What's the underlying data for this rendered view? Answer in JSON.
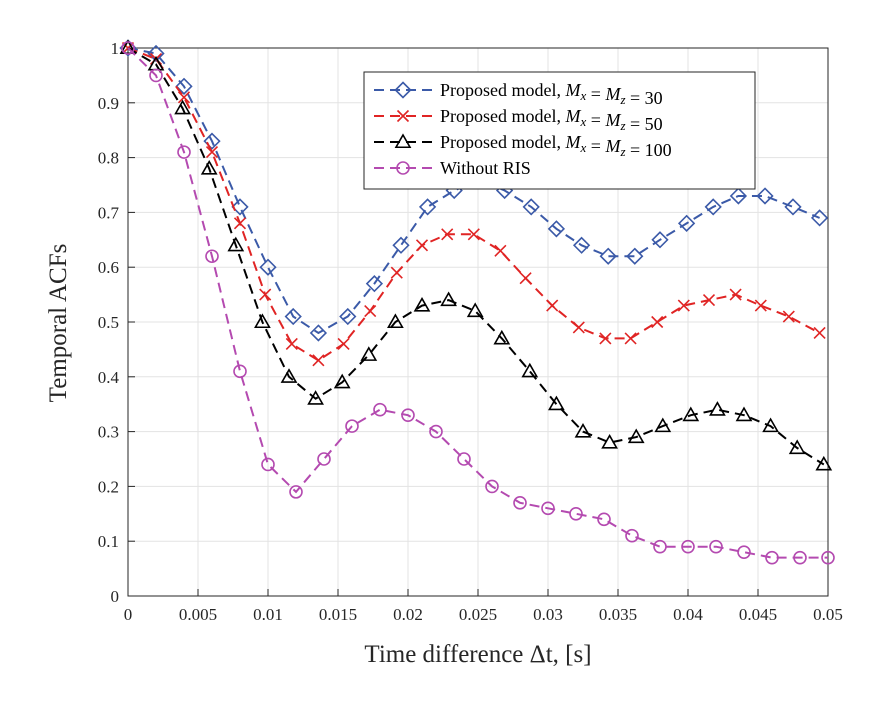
{
  "chart_data": {
    "type": "line",
    "title": "",
    "xlabel": "Time difference Δt, [s]",
    "ylabel": "Temporal ACFs",
    "xlim": [
      0,
      0.05
    ],
    "ylim": [
      0,
      1
    ],
    "xticks": [
      0,
      0.005,
      0.01,
      0.015,
      0.02,
      0.025,
      0.03,
      0.035,
      0.04,
      0.045,
      0.05
    ],
    "xtick_labels": [
      "0",
      "0.005",
      "0.01",
      "0.015",
      "0.02",
      "0.025",
      "0.03",
      "0.035",
      "0.04",
      "0.045",
      "0.05"
    ],
    "yticks": [
      0,
      0.1,
      0.2,
      0.3,
      0.4,
      0.5,
      0.6,
      0.7,
      0.8,
      0.9,
      1
    ],
    "ytick_labels": [
      "0",
      "0.1",
      "0.2",
      "0.3",
      "0.4",
      "0.5",
      "0.6",
      "0.7",
      "0.8",
      "0.9",
      "1"
    ],
    "grid": true,
    "legend_position": "top-right",
    "series": [
      {
        "name": "Proposed model, Mx = Mz = 30",
        "color": "#3b5aa8",
        "marker": "diamond",
        "x": [
          0,
          0.002,
          0.004,
          0.006,
          0.008,
          0.01,
          0.0118,
          0.0136,
          0.0157,
          0.0176,
          0.0195,
          0.0214,
          0.0233,
          0.0251,
          0.0269,
          0.0288,
          0.0306,
          0.0324,
          0.0343,
          0.0362,
          0.038,
          0.0399,
          0.0418,
          0.0436,
          0.0455,
          0.0475,
          0.0494
        ],
        "y": [
          1.0,
          0.99,
          0.93,
          0.83,
          0.71,
          0.6,
          0.51,
          0.48,
          0.51,
          0.57,
          0.64,
          0.71,
          0.74,
          0.76,
          0.74,
          0.71,
          0.67,
          0.64,
          0.62,
          0.62,
          0.65,
          0.68,
          0.71,
          0.73,
          0.73,
          0.71,
          0.69
        ]
      },
      {
        "name": "Proposed model, Mx = Mz = 50",
        "color": "#e02424",
        "marker": "x",
        "x": [
          0,
          0.002,
          0.004,
          0.006,
          0.008,
          0.0098,
          0.0117,
          0.0136,
          0.0154,
          0.0173,
          0.0192,
          0.021,
          0.0228,
          0.0247,
          0.0266,
          0.0284,
          0.0303,
          0.0322,
          0.0341,
          0.0359,
          0.0378,
          0.0397,
          0.0415,
          0.0434,
          0.0452,
          0.0472,
          0.0494
        ],
        "y": [
          1.0,
          0.98,
          0.91,
          0.81,
          0.68,
          0.55,
          0.46,
          0.43,
          0.46,
          0.52,
          0.59,
          0.64,
          0.66,
          0.66,
          0.63,
          0.58,
          0.53,
          0.49,
          0.47,
          0.47,
          0.5,
          0.53,
          0.54,
          0.55,
          0.53,
          0.51,
          0.48
        ]
      },
      {
        "name": "Proposed model, Mx = Mz = 100",
        "color": "#000000",
        "marker": "triangle",
        "x": [
          0,
          0.002,
          0.0039,
          0.0058,
          0.0077,
          0.0096,
          0.0115,
          0.0134,
          0.0153,
          0.0172,
          0.0191,
          0.021,
          0.0229,
          0.0248,
          0.0267,
          0.0287,
          0.0306,
          0.0325,
          0.0344,
          0.0363,
          0.0382,
          0.0402,
          0.0421,
          0.044,
          0.0459,
          0.0478,
          0.0497
        ],
        "y": [
          1.0,
          0.97,
          0.89,
          0.78,
          0.64,
          0.5,
          0.4,
          0.36,
          0.39,
          0.44,
          0.5,
          0.53,
          0.54,
          0.52,
          0.47,
          0.41,
          0.35,
          0.3,
          0.28,
          0.29,
          0.31,
          0.33,
          0.34,
          0.33,
          0.31,
          0.27,
          0.24
        ]
      },
      {
        "name": "Without RIS",
        "color": "#b44ab0",
        "marker": "circle",
        "x": [
          0,
          0.002,
          0.004,
          0.006,
          0.008,
          0.01,
          0.012,
          0.014,
          0.016,
          0.018,
          0.02,
          0.022,
          0.024,
          0.026,
          0.028,
          0.03,
          0.032,
          0.034,
          0.036,
          0.038,
          0.04,
          0.042,
          0.044,
          0.046,
          0.048,
          0.05
        ],
        "y": [
          1.0,
          0.95,
          0.81,
          0.62,
          0.41,
          0.24,
          0.19,
          0.25,
          0.31,
          0.34,
          0.33,
          0.3,
          0.25,
          0.2,
          0.17,
          0.16,
          0.15,
          0.14,
          0.11,
          0.09,
          0.09,
          0.09,
          0.08,
          0.07,
          0.07,
          0.07
        ]
      }
    ]
  }
}
